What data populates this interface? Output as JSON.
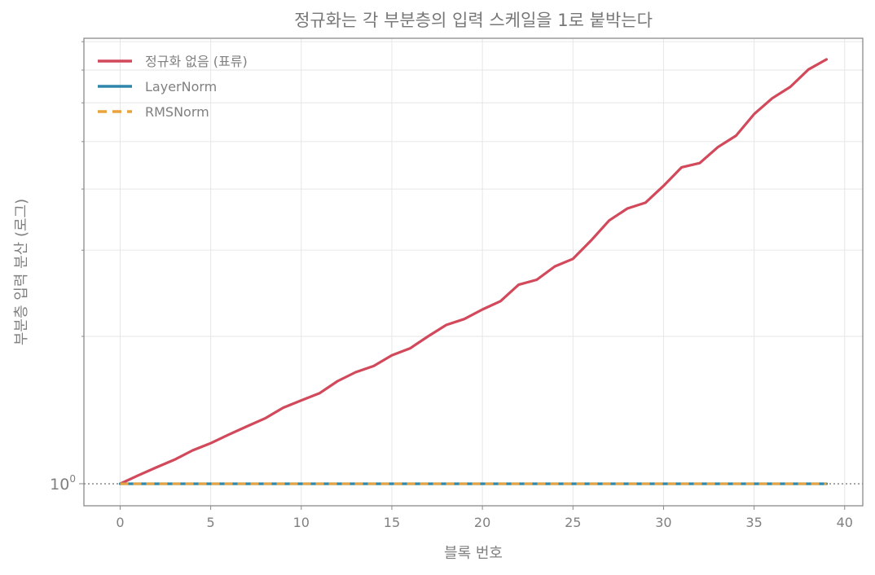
{
  "chart_data": {
    "type": "line",
    "title": "정규화는 각 부분층의 입력 스케일을 1로 붙박는다",
    "xlabel": "블록 번호",
    "ylabel": "부분층 입력 분산 (로그)",
    "x_ticks": [
      "0",
      "5",
      "10",
      "15",
      "20",
      "25",
      "30",
      "35",
      "40"
    ],
    "y_tick_labels": [
      {
        "base": "10",
        "exp": "0"
      }
    ],
    "xlim": [
      -2,
      41
    ],
    "ylim_log10": [
      -0.045,
      0.91
    ],
    "y_scale": "log",
    "grid": true,
    "legend_position": "top-left",
    "reference_line_y": 1,
    "x": [
      0,
      1,
      2,
      3,
      4,
      5,
      6,
      7,
      8,
      9,
      10,
      11,
      12,
      13,
      14,
      15,
      16,
      17,
      18,
      19,
      20,
      21,
      22,
      23,
      24,
      25,
      26,
      27,
      28,
      29,
      30,
      31,
      32,
      33,
      34,
      35,
      36,
      37,
      38,
      39
    ],
    "series": [
      {
        "name": "정규화 없음 (표류)",
        "color": "#d1495b",
        "dash": "solid",
        "values": [
          1.0,
          1.04,
          1.08,
          1.12,
          1.17,
          1.21,
          1.26,
          1.31,
          1.36,
          1.43,
          1.48,
          1.53,
          1.62,
          1.69,
          1.74,
          1.83,
          1.89,
          2.0,
          2.11,
          2.17,
          2.27,
          2.36,
          2.55,
          2.61,
          2.78,
          2.88,
          3.14,
          3.45,
          3.65,
          3.75,
          4.06,
          4.43,
          4.52,
          4.87,
          5.14,
          5.69,
          6.13,
          6.47,
          7.02,
          7.36
        ]
      },
      {
        "name": "LayerNorm",
        "color": "#2e86ab",
        "dash": "solid",
        "values": [
          1,
          1,
          1,
          1,
          1,
          1,
          1,
          1,
          1,
          1,
          1,
          1,
          1,
          1,
          1,
          1,
          1,
          1,
          1,
          1,
          1,
          1,
          1,
          1,
          1,
          1,
          1,
          1,
          1,
          1,
          1,
          1,
          1,
          1,
          1,
          1,
          1,
          1,
          1,
          1
        ]
      },
      {
        "name": "RMSNorm",
        "color": "#e8a33d",
        "dash": "dashed",
        "values": [
          1,
          1,
          1,
          1,
          1,
          1,
          1,
          1,
          1,
          1,
          1,
          1,
          1,
          1,
          1,
          1,
          1,
          1,
          1,
          1,
          1,
          1,
          1,
          1,
          1,
          1,
          1,
          1,
          1,
          1,
          1,
          1,
          1,
          1,
          1,
          1,
          1,
          1,
          1,
          1
        ]
      }
    ]
  }
}
